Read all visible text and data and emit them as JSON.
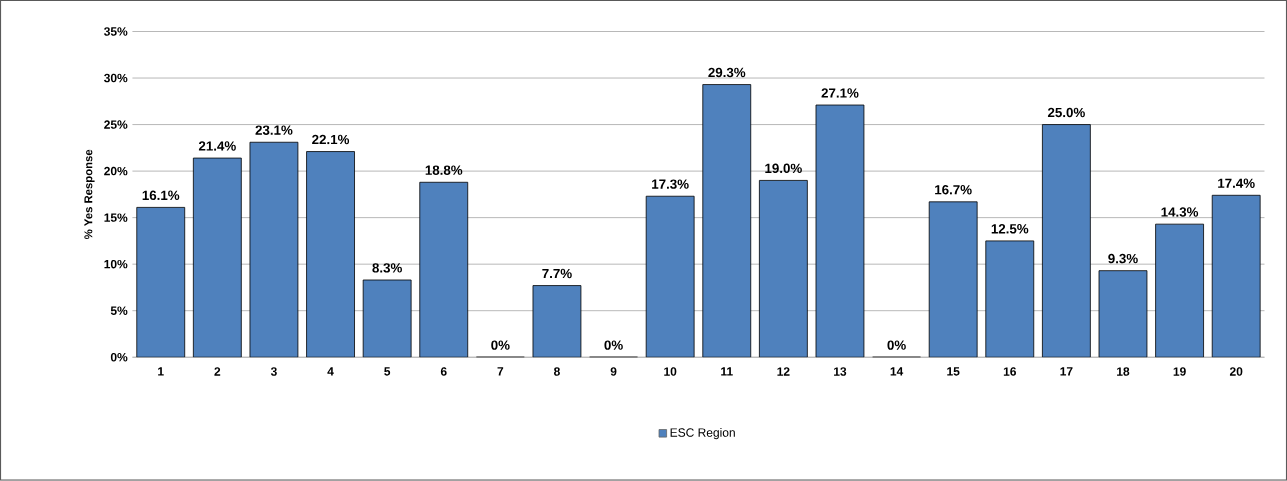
{
  "chart_data": {
    "type": "bar",
    "ylabel": "% Yes Response",
    "categories": [
      "1",
      "2",
      "3",
      "4",
      "5",
      "6",
      "7",
      "8",
      "9",
      "10",
      "11",
      "12",
      "13",
      "14",
      "15",
      "16",
      "17",
      "18",
      "19",
      "20"
    ],
    "series": [
      {
        "name": "ESC Region",
        "color": "#4f81bd",
        "values": [
          16.1,
          21.4,
          23.1,
          22.1,
          8.3,
          18.8,
          0,
          7.7,
          0,
          17.3,
          29.3,
          19.0,
          27.1,
          0,
          16.7,
          12.5,
          25.0,
          9.3,
          14.3,
          17.4
        ],
        "value_labels": [
          "16.1%",
          "21.4%",
          "23.1%",
          "22.1%",
          "8.3%",
          "18.8%",
          "0%",
          "7.7%",
          "0%",
          "17.3%",
          "29.3%",
          "19.0%",
          "27.1%",
          "0%",
          "16.7%",
          "12.5%",
          "25.0%",
          "9.3%",
          "14.3%",
          "17.4%"
        ]
      }
    ],
    "ylim": [
      0,
      35
    ],
    "yticks": [
      {
        "value": 0,
        "label": "0%"
      },
      {
        "value": 5,
        "label": "5%"
      },
      {
        "value": 10,
        "label": "10%"
      },
      {
        "value": 15,
        "label": "15%"
      },
      {
        "value": 20,
        "label": "20%"
      },
      {
        "value": 25,
        "label": "25%"
      },
      {
        "value": 30,
        "label": "30%"
      },
      {
        "value": 35,
        "label": "35%"
      }
    ],
    "grid": "y",
    "legend": "bottom"
  }
}
